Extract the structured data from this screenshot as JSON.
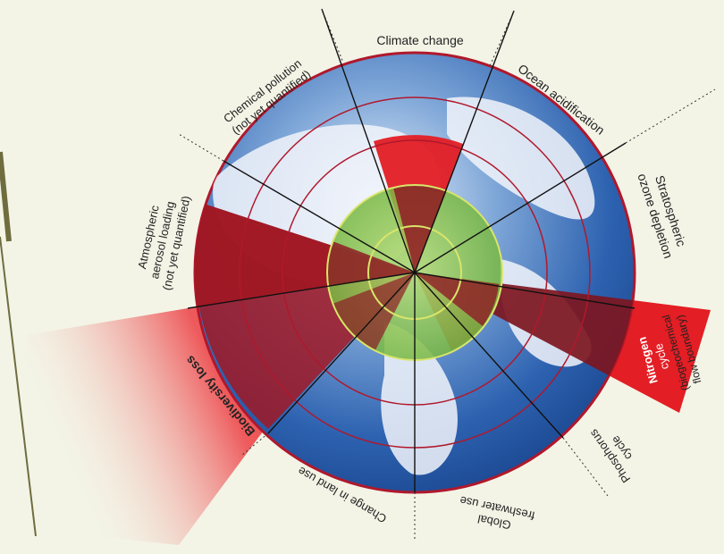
{
  "diagram": {
    "labels": {
      "climate": "Climate change",
      "ocean": "Ocean acidification",
      "ozone_1": "Stratospheric",
      "ozone_2": "ozone depletion",
      "nitrogen_1": "Nitrogen",
      "nitrogen_2": "cycle",
      "nitrogen_3": "(biogeochemical",
      "nitrogen_4": "flow boundary)",
      "phosphorus_1": "Phosphorus",
      "phosphorus_2": "cycle",
      "freshwater_1": "Global",
      "freshwater_2": "freshwater use",
      "landuse": "Change in land use",
      "biodiversity": "Biodiversity loss",
      "aerosol_1": "Atmospheric",
      "aerosol_2": "aerosol loading",
      "aerosol_3": "(not yet quantified)",
      "chemical_1": "Chemical pollution",
      "chemical_2": "(not yet quantified)"
    },
    "colors": {
      "background": "#f3f4e6",
      "safe_zone": "#8cc63f",
      "boundary_red": "#e31e24",
      "ocean_blue": "#2a5fae",
      "ring_line": "#b0182c"
    }
  }
}
